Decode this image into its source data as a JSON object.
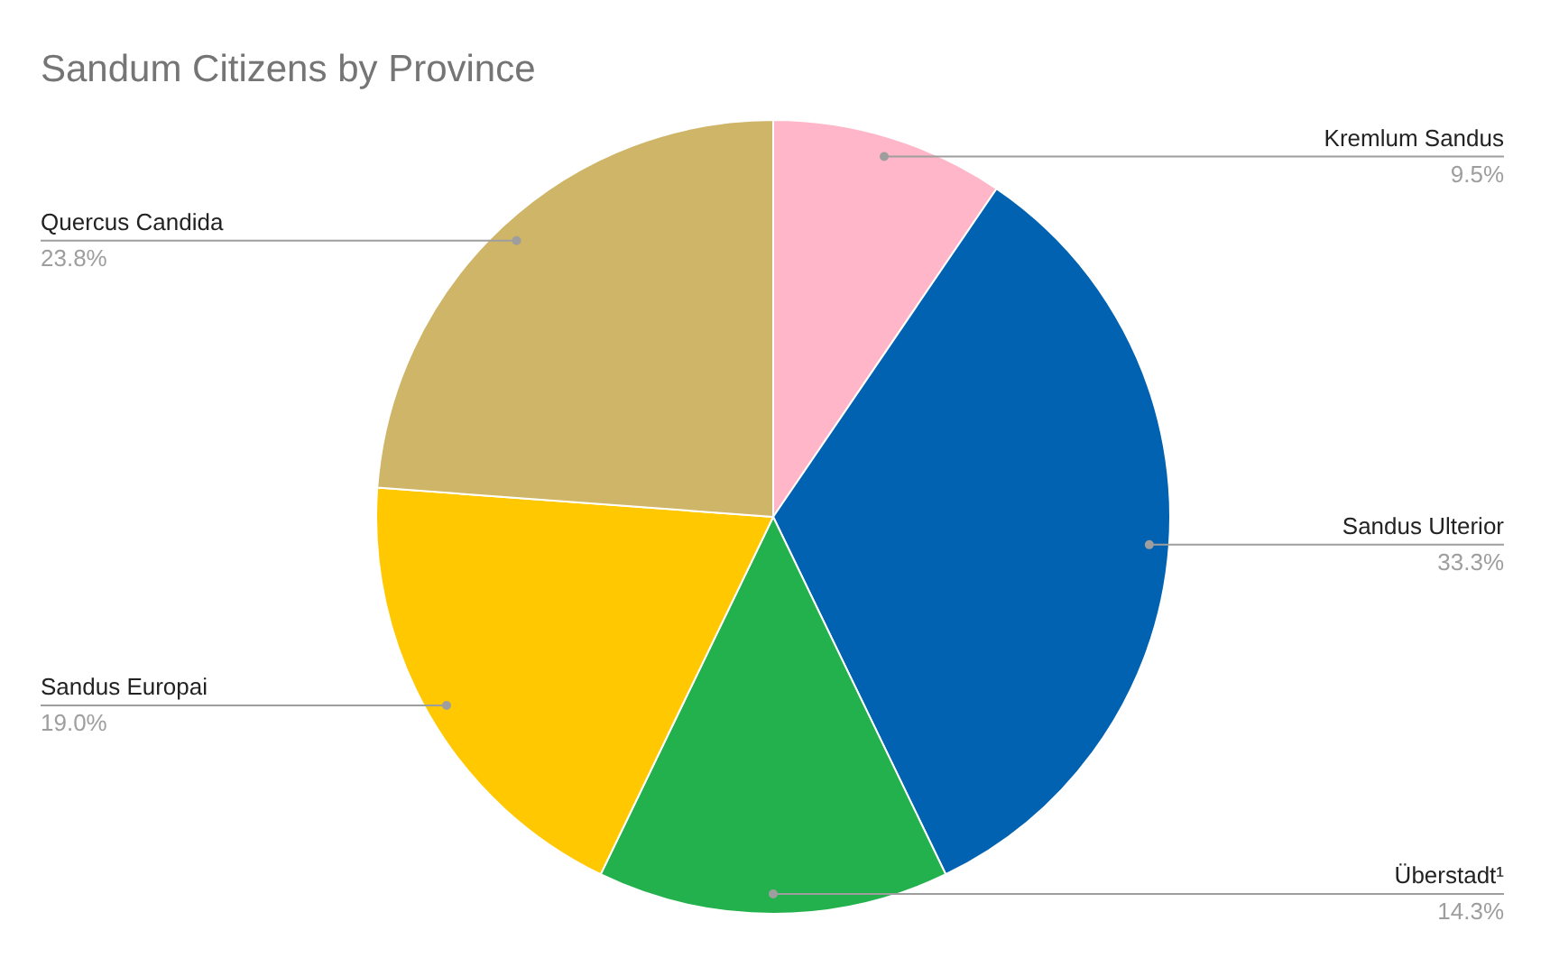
{
  "chart_data": {
    "type": "pie",
    "title": "Sandum Citizens by Province",
    "categories": [
      "Kremlum Sandus",
      "Sandus Ulterior",
      "Überstadt¹",
      "Sandus Europai",
      "Quercus Candida"
    ],
    "values": [
      9.5,
      33.3,
      14.3,
      19.0,
      23.8
    ],
    "colors": [
      "#ffb6c8",
      "#0062b1",
      "#23b14d",
      "#ffc800",
      "#cfb567"
    ],
    "value_labels": [
      "9.5%",
      "33.3%",
      "14.3%",
      "19.0%",
      "23.8%"
    ],
    "legend": false
  }
}
